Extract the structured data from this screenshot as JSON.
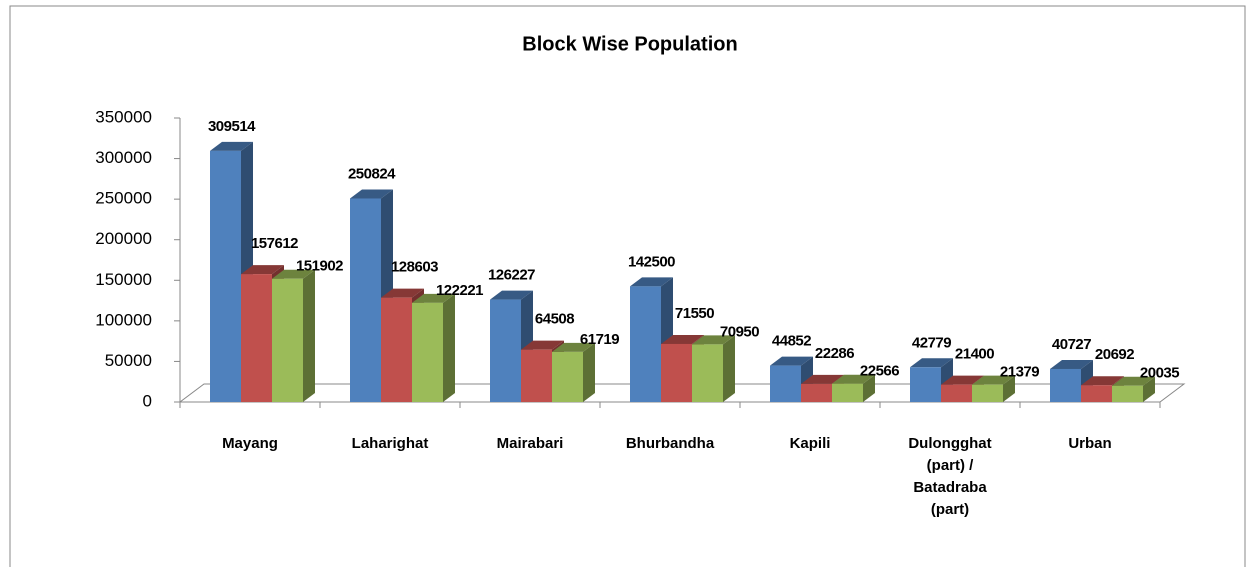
{
  "chart_data": {
    "type": "bar3d",
    "title": "Block Wise Population",
    "categories": [
      "Mayang",
      "Laharighat",
      "Mairabari",
      "Bhurbandha",
      "Kapili",
      "Dulongghat (part) / Batadraba (part)",
      "Urban"
    ],
    "series": [
      {
        "color": "#4f81bd",
        "values": [
          309514,
          250824,
          126227,
          142500,
          44852,
          42779,
          40727
        ]
      },
      {
        "color": "#c0504d",
        "values": [
          157612,
          128603,
          64508,
          71550,
          22286,
          21400,
          20692
        ]
      },
      {
        "color": "#9bbb59",
        "values": [
          151902,
          122221,
          61719,
          70950,
          22566,
          21379,
          20035
        ]
      }
    ],
    "ylim": [
      0,
      350000
    ],
    "yticks": [
      0,
      50000,
      100000,
      150000,
      200000,
      250000,
      300000,
      350000
    ],
    "grid": false
  }
}
